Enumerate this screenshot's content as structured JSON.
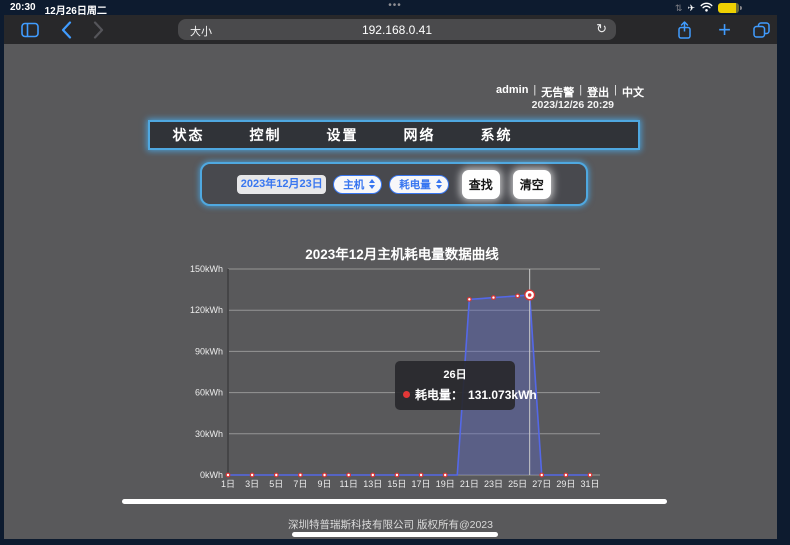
{
  "status_bar": {
    "time": "20:30",
    "date": "12月26日周二",
    "multitask_dots": "•••"
  },
  "browser": {
    "text_size_label": "大小",
    "url": "192.168.0.41"
  },
  "icons": {
    "plane_glyph": "✈",
    "sync_glyph": "⇅",
    "reload_glyph": "↻",
    "plus_glyph": "+"
  },
  "page": {
    "user_bar": {
      "username": "admin",
      "alarm_status": "无告警",
      "logout": "登出",
      "language": "中文",
      "separator": "|",
      "datetime": "2023/12/26 20:29"
    },
    "nav": {
      "items": [
        {
          "label": "状态"
        },
        {
          "label": "控制"
        },
        {
          "label": "设置"
        },
        {
          "label": "网络"
        },
        {
          "label": "系统"
        }
      ]
    },
    "filter": {
      "date_value": "2023年12月23日",
      "device_select": "主机",
      "metric_select": "耗电量",
      "search_label": "查找",
      "clear_label": "清空"
    },
    "footer": "深圳特普瑞斯科技有限公司 版权所有@2023"
  },
  "chart_data": {
    "type": "area",
    "title": "2023年12月主机耗电量数据曲线",
    "series_name": "耗电量",
    "unit": "kWh",
    "days": [
      1,
      2,
      3,
      4,
      5,
      6,
      7,
      8,
      9,
      10,
      11,
      12,
      13,
      14,
      15,
      16,
      17,
      18,
      19,
      20,
      21,
      22,
      23,
      24,
      25,
      26,
      27,
      28,
      29,
      30,
      31
    ],
    "values": [
      0,
      0,
      0,
      0,
      0,
      0,
      0,
      0,
      0,
      0,
      0,
      0,
      0,
      0,
      0,
      0,
      0,
      0,
      0,
      0,
      127.9,
      128.5,
      129.2,
      129.8,
      130.4,
      131.073,
      0,
      0,
      0,
      0,
      0
    ],
    "marker_days": [
      1,
      3,
      5,
      7,
      9,
      11,
      13,
      15,
      17,
      19,
      21,
      23,
      25,
      27,
      29,
      31
    ],
    "x_tick_labels": [
      "1日",
      "3日",
      "5日",
      "7日",
      "9日",
      "11日",
      "13日",
      "15日",
      "17日",
      "19日",
      "21日",
      "23日",
      "25日",
      "27日",
      "29日",
      "31日"
    ],
    "y_tick_labels": [
      "0kWh",
      "30kWh",
      "60kWh",
      "90kWh",
      "120kWh",
      "150kWh"
    ],
    "ylim": [
      0,
      150
    ],
    "grid": true,
    "highlight": {
      "day": 26,
      "value": 131.073,
      "tooltip_title": "26日",
      "tooltip_series_label": "耗电量：",
      "tooltip_value": "131.073kWh"
    },
    "colors": {
      "line": "#5468e8",
      "fill": "rgba(92,104,196,0.42)",
      "marker": "#d93535",
      "grid": "#969696",
      "axis": "#454547",
      "crosshair": "#c9c9c9"
    }
  }
}
